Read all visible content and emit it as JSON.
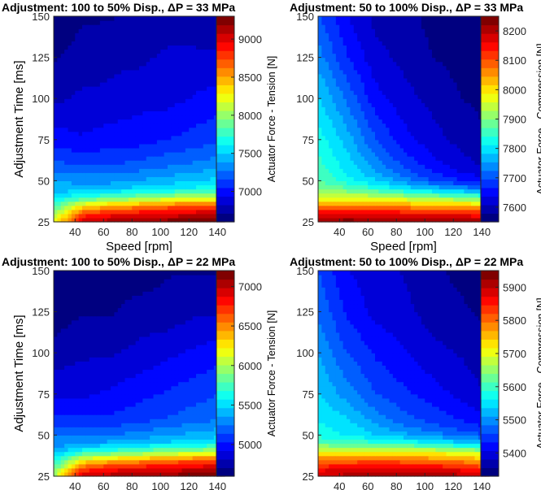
{
  "chart_data": [
    {
      "type": "heatmap",
      "title": "Adjustment: 100 to 50% Disp., ΔP = 33 MPa",
      "xlabel": "Speed [rpm]",
      "ylabel": "Adjustment Time [ms]",
      "colorbar_label": "Actuator Force - Tension [N]",
      "xlim": [
        25,
        145
      ],
      "ylim": [
        25,
        150
      ],
      "xticks": [
        40,
        60,
        80,
        100,
        120,
        140
      ],
      "yticks": [
        25,
        50,
        75,
        100,
        125,
        150
      ],
      "clim": [
        6600,
        9300
      ],
      "cticks": [
        7000,
        7500,
        8000,
        8500,
        9000
      ],
      "x": [
        25,
        45,
        65,
        85,
        105,
        125,
        145
      ],
      "y": [
        25,
        30,
        35,
        40,
        45,
        50,
        55,
        60,
        75,
        100,
        125,
        150
      ],
      "z": [
        [
          8200,
          9050,
          9150,
          9200,
          9250,
          9250,
          9300
        ],
        [
          8000,
          8750,
          8900,
          8950,
          9000,
          9050,
          9100
        ],
        [
          7750,
          8300,
          8450,
          8550,
          8650,
          8700,
          8750
        ],
        [
          7550,
          7750,
          7850,
          7950,
          8050,
          8100,
          8150
        ],
        [
          7450,
          7450,
          7500,
          7550,
          7600,
          7650,
          7700
        ],
        [
          7400,
          7350,
          7350,
          7400,
          7450,
          7500,
          7550
        ],
        [
          7300,
          7250,
          7250,
          7300,
          7350,
          7400,
          7450
        ],
        [
          7200,
          7150,
          7150,
          7200,
          7250,
          7300,
          7350
        ],
        [
          7000,
          6950,
          7000,
          7000,
          7050,
          7100,
          7150
        ],
        [
          6800,
          6850,
          6850,
          6900,
          6900,
          6950,
          7000
        ],
        [
          6700,
          6750,
          6800,
          6800,
          6850,
          6850,
          6850
        ],
        [
          6650,
          6700,
          6700,
          6750,
          6750,
          6750,
          6700
        ]
      ]
    },
    {
      "type": "heatmap",
      "title": "Adjustment: 50 to 100% Disp., ΔP = 33 MPa",
      "xlabel": "Speed [rpm]",
      "ylabel": "",
      "colorbar_label": "Actuator Force - Compression [N]",
      "xlim": [
        25,
        145
      ],
      "ylim": [
        25,
        150
      ],
      "xticks": [
        40,
        60,
        80,
        100,
        120,
        140
      ],
      "yticks": [
        25,
        50,
        75,
        100,
        125,
        150
      ],
      "clim": [
        7550,
        8250
      ],
      "cticks": [
        7600,
        7700,
        7800,
        7900,
        8000,
        8100,
        8200
      ],
      "x": [
        25,
        45,
        65,
        85,
        105,
        125,
        145
      ],
      "y": [
        25,
        30,
        35,
        40,
        45,
        50,
        55,
        60,
        75,
        100,
        125,
        150
      ],
      "z": [
        [
          8230,
          8240,
          8230,
          8240,
          8230,
          8230,
          8210
        ],
        [
          8160,
          8170,
          8170,
          8160,
          8150,
          8150,
          8130
        ],
        [
          8060,
          8060,
          8060,
          8050,
          8040,
          8030,
          8010
        ],
        [
          7960,
          7960,
          7950,
          7930,
          7910,
          7890,
          7870
        ],
        [
          7910,
          7880,
          7850,
          7810,
          7780,
          7750,
          7730
        ],
        [
          7870,
          7830,
          7790,
          7740,
          7700,
          7670,
          7650
        ],
        [
          7860,
          7810,
          7760,
          7710,
          7670,
          7640,
          7620
        ],
        [
          7850,
          7800,
          7740,
          7690,
          7650,
          7620,
          7600
        ],
        [
          7830,
          7770,
          7700,
          7650,
          7620,
          7600,
          7580
        ],
        [
          7790,
          7720,
          7650,
          7620,
          7600,
          7580,
          7570
        ],
        [
          7740,
          7670,
          7620,
          7600,
          7580,
          7570,
          7560
        ],
        [
          7700,
          7640,
          7600,
          7590,
          7570,
          7560,
          7560
        ]
      ]
    },
    {
      "type": "heatmap",
      "title": "Adjustment: 100 to 50% Disp., ΔP = 22 MPa",
      "xlabel": "Speed [rpm]",
      "ylabel": "Adjustment Time [ms]",
      "colorbar_label": "Actuator Force - Tension [N]",
      "xlim": [
        25,
        145
      ],
      "ylim": [
        25,
        150
      ],
      "xticks": [
        40,
        60,
        80,
        100,
        120,
        140
      ],
      "yticks": [
        25,
        50,
        75,
        100,
        125,
        150
      ],
      "clim": [
        4600,
        7200
      ],
      "cticks": [
        5000,
        5500,
        6000,
        6500,
        7000
      ],
      "x": [
        25,
        45,
        65,
        85,
        105,
        125,
        145
      ],
      "y": [
        25,
        30,
        35,
        40,
        45,
        50,
        55,
        60,
        75,
        100,
        125,
        150
      ],
      "z": [
        [
          6000,
          6950,
          7050,
          7100,
          7150,
          7150,
          7200
        ],
        [
          5800,
          6650,
          6800,
          6850,
          6900,
          6950,
          7000
        ],
        [
          5600,
          6200,
          6350,
          6450,
          6550,
          6600,
          6650
        ],
        [
          5400,
          5650,
          5750,
          5850,
          5950,
          6000,
          6050
        ],
        [
          5300,
          5350,
          5400,
          5450,
          5500,
          5550,
          5600
        ],
        [
          5250,
          5250,
          5250,
          5300,
          5350,
          5400,
          5450
        ],
        [
          5150,
          5150,
          5150,
          5200,
          5250,
          5300,
          5350
        ],
        [
          5050,
          5050,
          5050,
          5100,
          5150,
          5200,
          5250
        ],
        [
          4900,
          4900,
          4950,
          5000,
          5050,
          5100,
          5150
        ],
        [
          4750,
          4800,
          4800,
          4850,
          4900,
          4950,
          5000
        ],
        [
          4650,
          4700,
          4700,
          4750,
          4750,
          4800,
          4800
        ],
        [
          4600,
          4650,
          4650,
          4650,
          4700,
          4700,
          4700
        ]
      ]
    },
    {
      "type": "heatmap",
      "title": "Adjustment: 50 to 100% Disp., ΔP = 22 MPa",
      "xlabel": "Speed [rpm]",
      "ylabel": "",
      "colorbar_label": "Actuator Force - Compression [N]",
      "xlim": [
        25,
        145
      ],
      "ylim": [
        25,
        150
      ],
      "xticks": [
        40,
        60,
        80,
        100,
        120,
        140
      ],
      "yticks": [
        25,
        50,
        75,
        100,
        125,
        150
      ],
      "clim": [
        5330,
        5950
      ],
      "cticks": [
        5400,
        5500,
        5600,
        5700,
        5800,
        5900
      ],
      "x": [
        25,
        45,
        65,
        85,
        105,
        125,
        145
      ],
      "y": [
        25,
        30,
        35,
        40,
        45,
        50,
        55,
        60,
        75,
        100,
        125,
        150
      ],
      "z": [
        [
          5900,
          5910,
          5920,
          5930,
          5920,
          5910,
          5880
        ],
        [
          5860,
          5870,
          5880,
          5880,
          5870,
          5860,
          5830
        ],
        [
          5790,
          5800,
          5810,
          5800,
          5790,
          5780,
          5750
        ],
        [
          5710,
          5710,
          5720,
          5710,
          5700,
          5690,
          5660
        ],
        [
          5620,
          5610,
          5600,
          5590,
          5570,
          5550,
          5530
        ],
        [
          5580,
          5560,
          5540,
          5520,
          5500,
          5480,
          5460
        ],
        [
          5570,
          5550,
          5520,
          5490,
          5470,
          5450,
          5430
        ],
        [
          5560,
          5540,
          5500,
          5470,
          5450,
          5430,
          5410
        ],
        [
          5540,
          5500,
          5460,
          5440,
          5420,
          5400,
          5380
        ],
        [
          5510,
          5460,
          5430,
          5410,
          5390,
          5380,
          5360
        ],
        [
          5480,
          5430,
          5400,
          5390,
          5370,
          5360,
          5350
        ],
        [
          5460,
          5410,
          5390,
          5380,
          5360,
          5350,
          5340
        ]
      ]
    }
  ]
}
